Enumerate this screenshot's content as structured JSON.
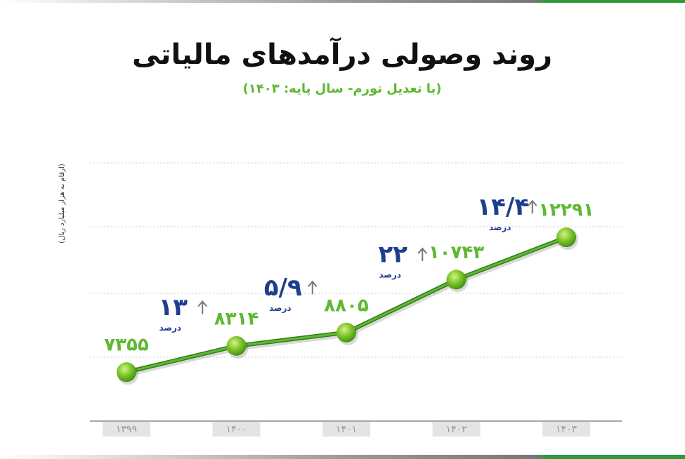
{
  "chart_data": {
    "type": "line",
    "title": "روند وصولی درآمدهای مالیاتی",
    "subtitle": "(با تعدیل تورم- سال پایه: ۱۴۰۳)",
    "y_label": "(ارقام به هزار میلیارد ریال)",
    "categories": [
      "۱۳۹۹",
      "۱۴۰۰",
      "۱۴۰۱",
      "۱۴۰۲",
      "۱۴۰۳"
    ],
    "values": [
      7355,
      8314,
      8805,
      10743,
      12291
    ],
    "value_labels": [
      "۷۳۵۵",
      "۸۳۱۴",
      "۸۸۰۵",
      "۱۰۷۴۳",
      "۱۲۲۹۱"
    ],
    "color": "#5fb832",
    "ylim": [
      5560,
      15020
    ],
    "annotations": [
      {
        "text": "۱۳",
        "unit": "درصد"
      },
      {
        "text": "۵/۹",
        "unit": "درصد"
      },
      {
        "text": "۲۲",
        "unit": "درصد"
      },
      {
        "text": "۱۴/۴",
        "unit": "درصد"
      }
    ]
  }
}
